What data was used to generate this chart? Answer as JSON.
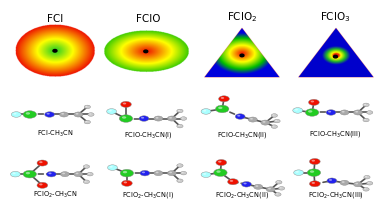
{
  "background_color": "#ffffff",
  "esp_label_fontsize": 7.5,
  "label_fontsize": 4.8,
  "atom_colors": {
    "F": "#aaffff",
    "Cl": "#22cc22",
    "O": "#ee1100",
    "N": "#2222ee",
    "C": "#aaaaaa",
    "H": "#cccccc"
  },
  "esp_panels": [
    {
      "label": "FCl",
      "type": "circle"
    },
    {
      "label": "FClO",
      "type": "oval_ryr"
    },
    {
      "label": "FClO$_2$",
      "type": "tri_ryr_blue"
    },
    {
      "label": "FClO$_3$",
      "type": "tri_yg_blue"
    }
  ]
}
